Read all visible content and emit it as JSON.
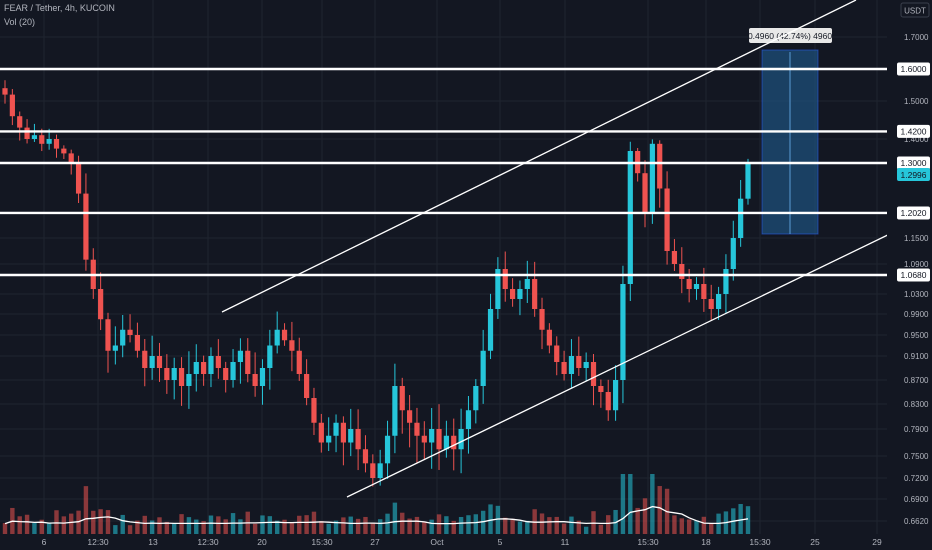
{
  "header": {
    "symbol_line": "FEAR / Tether, 4h, KUCOIN",
    "indicator_line": "Vol (20)"
  },
  "currency_badge": "USDT",
  "measure_label": "0.4960 (42.74%) 4960",
  "colors": {
    "background": "#131722",
    "up": "#26c6da",
    "down": "#ef5350",
    "line": "#ffffff",
    "grid": "#1f2430",
    "axis_text": "#b2b5be",
    "measure_fill": "#1e4f7a",
    "current_price": "#26c6da"
  },
  "chart_data": {
    "type": "candlestick",
    "title": "FEAR / Tether, 4h, KUCOIN",
    "indicator": "Vol (20)",
    "y_axis_ticks": [
      "1.7000",
      "1.6000",
      "1.5000",
      "1.4000",
      "1.3000",
      "1.2000",
      "1.1500",
      "1.0900",
      "1.0300",
      "0.9900",
      "0.9500",
      "0.9100",
      "0.8700",
      "0.8300",
      "0.7900",
      "0.7500",
      "0.7200",
      "0.6900",
      "0.6620"
    ],
    "x_axis_ticks": [
      "6",
      "12:30",
      "13",
      "12:30",
      "20",
      "15:30",
      "27",
      "Oct",
      "5",
      "11",
      "15:30",
      "18",
      "15:30",
      "25",
      "29"
    ],
    "horizontal_levels": [
      {
        "price": 1.6,
        "label": "1.6000"
      },
      {
        "price": 1.42,
        "label": "1.4200"
      },
      {
        "price": 1.3,
        "label": "1.3000"
      },
      {
        "price": 1.202,
        "label": "1.2020"
      },
      {
        "price": 1.068,
        "label": "1.0680"
      }
    ],
    "current_price": "1.2996",
    "channel": {
      "upper": {
        "from": 0.99,
        "to": 1.8,
        "range": "Sep 15 – Oct 27"
      },
      "lower": {
        "from": 0.69,
        "to": 1.15,
        "range": "Sep 25 – Oct 27"
      }
    },
    "measure_box": {
      "from_price": 1.16,
      "to_price": 1.656,
      "change": "0.4960",
      "percent": "42.74%"
    },
    "candle_closes_approx": [
      1.52,
      1.46,
      1.43,
      1.4,
      1.41,
      1.38,
      1.4,
      1.36,
      1.34,
      1.3,
      1.24,
      1.1,
      1.04,
      0.98,
      0.92,
      0.93,
      0.96,
      0.95,
      0.92,
      0.89,
      0.91,
      0.89,
      0.87,
      0.89,
      0.86,
      0.88,
      0.9,
      0.88,
      0.91,
      0.89,
      0.87,
      0.9,
      0.92,
      0.88,
      0.86,
      0.89,
      0.93,
      0.96,
      0.94,
      0.92,
      0.88,
      0.84,
      0.8,
      0.77,
      0.78,
      0.8,
      0.77,
      0.79,
      0.76,
      0.74,
      0.72,
      0.74,
      0.78,
      0.86,
      0.82,
      0.8,
      0.78,
      0.77,
      0.79,
      0.76,
      0.78,
      0.76,
      0.79,
      0.82,
      0.86,
      0.92,
      1.0,
      1.08,
      1.04,
      1.02,
      1.04,
      1.06,
      1.0,
      0.96,
      0.93,
      0.9,
      0.88,
      0.91,
      0.89,
      0.9,
      0.86,
      0.85,
      0.82,
      0.87,
      1.05,
      1.35,
      1.28,
      1.2,
      1.38,
      1.25,
      1.12,
      1.09,
      1.06,
      1.04,
      1.05,
      1.02,
      1.0,
      1.03,
      1.08,
      1.15,
      1.23,
      1.3
    ]
  }
}
